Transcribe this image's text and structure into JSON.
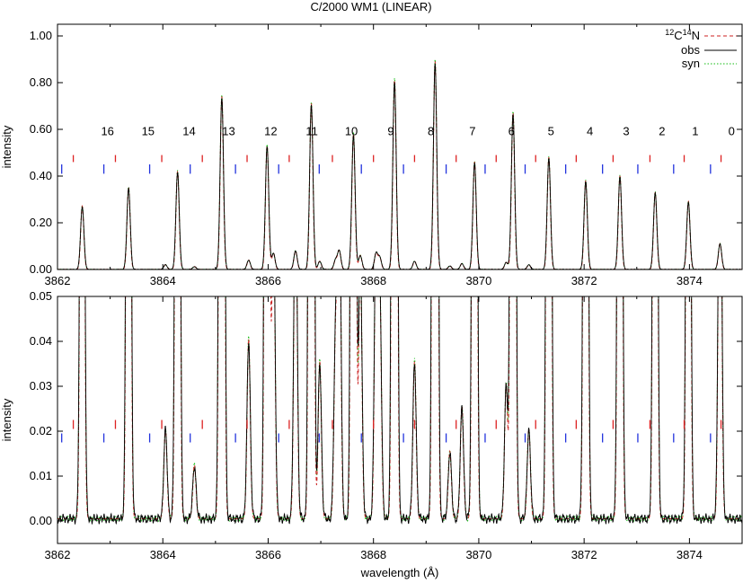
{
  "title": "C/2000 WM1 (LINEAR)",
  "colors": {
    "model": "#cc2222",
    "obs": "#000000",
    "syn": "#11bb11",
    "tick_red": "#dd2222",
    "tick_blue": "#2233dd"
  },
  "chart_data": [
    {
      "type": "line",
      "panel": "upper",
      "xlabel": "",
      "ylabel": "intensity",
      "xlim": [
        3862,
        3875
      ],
      "ylim": [
        0,
        1.05
      ],
      "xticks": [
        3862,
        3864,
        3866,
        3868,
        3870,
        3872,
        3874
      ],
      "xtick_labels": [
        "3862",
        "3864",
        "3866",
        "3868",
        "3870",
        "3872",
        "3874"
      ],
      "yticks": [
        0,
        0.2,
        0.4,
        0.6,
        0.8,
        1.0
      ],
      "ytick_labels": [
        "0.00",
        "0.20",
        "0.40",
        "0.60",
        "0.80",
        "1.00"
      ],
      "legend": {
        "position": "top-right",
        "entries": [
          {
            "label": "12C14N",
            "style": "dashed",
            "color": "#cc2222"
          },
          {
            "label": "obs",
            "style": "solid",
            "color": "#000000"
          },
          {
            "label": "syn",
            "style": "dotted",
            "color": "#11bb11"
          }
        ]
      },
      "series": [
        {
          "name": "12C14N",
          "style": "dashed"
        },
        {
          "name": "obs",
          "style": "solid"
        },
        {
          "name": "syn",
          "style": "dotted"
        }
      ],
      "main_peaks": [
        {
          "x": 3862.47,
          "y": 0.27
        },
        {
          "x": 3863.35,
          "y": 0.35
        },
        {
          "x": 3864.28,
          "y": 0.42
        },
        {
          "x": 3865.12,
          "y": 0.74
        },
        {
          "x": 3865.98,
          "y": 0.53
        },
        {
          "x": 3866.82,
          "y": 0.71
        },
        {
          "x": 3867.62,
          "y": 0.58
        },
        {
          "x": 3868.4,
          "y": 0.81
        },
        {
          "x": 3869.17,
          "y": 0.89
        },
        {
          "x": 3869.92,
          "y": 0.46
        },
        {
          "x": 3870.65,
          "y": 0.67
        },
        {
          "x": 3871.33,
          "y": 0.48
        },
        {
          "x": 3872.03,
          "y": 0.38
        },
        {
          "x": 3872.68,
          "y": 0.4
        },
        {
          "x": 3873.35,
          "y": 0.33
        },
        {
          "x": 3873.98,
          "y": 0.29
        },
        {
          "x": 3874.58,
          "y": 0.11
        }
      ],
      "minor_peaks": [
        {
          "x": 3864.05,
          "y": 0.02
        },
        {
          "x": 3864.6,
          "y": 0.012
        },
        {
          "x": 3865.63,
          "y": 0.04
        },
        {
          "x": 3866.1,
          "y": 0.07
        },
        {
          "x": 3866.52,
          "y": 0.08
        },
        {
          "x": 3866.98,
          "y": 0.035
        },
        {
          "x": 3867.28,
          "y": 0.04
        },
        {
          "x": 3867.35,
          "y": 0.08
        },
        {
          "x": 3867.75,
          "y": 0.06
        },
        {
          "x": 3868.05,
          "y": 0.07
        },
        {
          "x": 3868.12,
          "y": 0.05
        },
        {
          "x": 3868.78,
          "y": 0.035
        },
        {
          "x": 3869.45,
          "y": 0.015
        },
        {
          "x": 3869.68,
          "y": 0.025
        },
        {
          "x": 3870.52,
          "y": 0.03
        },
        {
          "x": 3870.95,
          "y": 0.02
        }
      ],
      "annotations": [
        {
          "text": "16",
          "x": 3862.95
        },
        {
          "text": "15",
          "x": 3863.72
        },
        {
          "text": "14",
          "x": 3864.5
        },
        {
          "text": "13",
          "x": 3865.25
        },
        {
          "text": "12",
          "x": 3866.05
        },
        {
          "text": "11",
          "x": 3866.83
        },
        {
          "text": "10",
          "x": 3867.58
        },
        {
          "text": "9",
          "x": 3868.33
        },
        {
          "text": "8",
          "x": 3869.09
        },
        {
          "text": "7",
          "x": 3869.88
        },
        {
          "text": "6",
          "x": 3870.62
        },
        {
          "text": "5",
          "x": 3871.37
        },
        {
          "text": "4",
          "x": 3872.11
        },
        {
          "text": "3",
          "x": 3872.8
        },
        {
          "text": "2",
          "x": 3873.48
        },
        {
          "text": "1",
          "x": 3874.11
        },
        {
          "text": "0",
          "x": 3874.8
        }
      ],
      "red_ticks_x": [
        3862.3,
        3863.1,
        3863.98,
        3864.75,
        3865.6,
        3866.4,
        3867.22,
        3868.0,
        3868.78,
        3869.57,
        3870.33,
        3871.08,
        3871.85,
        3872.55,
        3873.25,
        3873.9,
        3874.6
      ],
      "blue_ticks_x": [
        3862.08,
        3862.88,
        3863.75,
        3864.52,
        3865.38,
        3866.2,
        3866.97,
        3867.77,
        3868.57,
        3869.38,
        3870.12,
        3870.88,
        3871.65,
        3872.35,
        3873.02,
        3873.7,
        3874.4
      ],
      "tick_heights": {
        "red": [
          0.49,
          0.46
        ],
        "blue": [
          0.45,
          0.41
        ]
      }
    },
    {
      "type": "line",
      "panel": "lower",
      "xlabel": "wavelength (Å)",
      "ylabel": "intensity",
      "xlim": [
        3862,
        3875
      ],
      "ylim": [
        -0.005,
        0.05
      ],
      "xticks": [
        3862,
        3864,
        3866,
        3868,
        3870,
        3872,
        3874
      ],
      "xtick_labels": [
        "3862",
        "3864",
        "3866",
        "3868",
        "3870",
        "3872",
        "3874"
      ],
      "yticks": [
        0,
        0.01,
        0.02,
        0.03,
        0.04,
        0.05
      ],
      "ytick_labels": [
        "0.00",
        "0.01",
        "0.02",
        "0.03",
        "0.04",
        "0.05"
      ],
      "series": [
        {
          "name": "12C14N",
          "style": "dashed"
        },
        {
          "name": "obs",
          "style": "solid"
        },
        {
          "name": "syn",
          "style": "dotted"
        }
      ],
      "red_ticks_x": [
        3862.3,
        3863.1,
        3863.98,
        3864.75,
        3865.6,
        3866.4,
        3867.22,
        3868.0,
        3868.78,
        3869.57,
        3870.33,
        3871.08,
        3871.85,
        3872.55,
        3873.25,
        3873.9,
        3874.6
      ],
      "blue_ticks_x": [
        3862.08,
        3862.88,
        3863.75,
        3864.52,
        3865.38,
        3866.2,
        3866.97,
        3867.77,
        3868.57,
        3869.38,
        3870.12,
        3870.88,
        3871.65,
        3872.35,
        3873.02,
        3873.7,
        3874.4
      ],
      "tick_heights": {
        "red": [
          0.0225,
          0.0205
        ],
        "blue": [
          0.0195,
          0.0175
        ]
      }
    }
  ]
}
